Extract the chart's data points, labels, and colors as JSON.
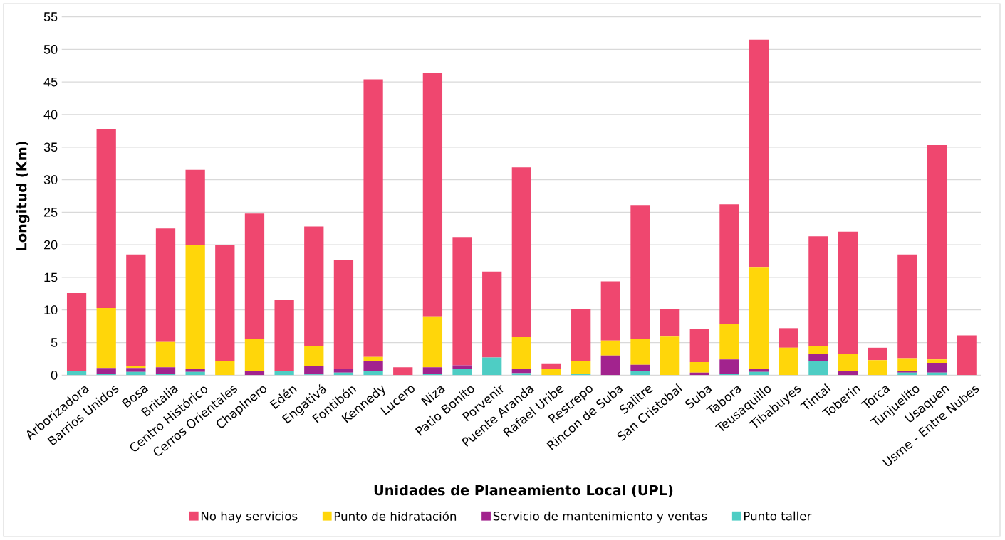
{
  "chart_data": {
    "type": "bar",
    "stacked": true,
    "xlabel": "Unidades de Planeamiento Local (UPL)",
    "ylabel": "Longitud (Km)",
    "categories": [
      "Arborizadora",
      "Barrios Unidos",
      "Bosa",
      "Britalia",
      "Centro Histórico",
      "Cerros Orientales",
      "Chapinero",
      "Edén",
      "Engativá",
      "Fontibón",
      "Kennedy",
      "Lucero",
      "Niza",
      "Patio Bonito",
      "Porvenir",
      "Puente Aranda",
      "Rafael Uribe",
      "Restrepo",
      "Rincon de Suba",
      "Salitre",
      "San Cristobal",
      "Suba",
      "Tabora",
      "Teusaquillo",
      "Tibabuyes",
      "Tintal",
      "Toberin",
      "Torca",
      "Tunjuelito",
      "Usaquen",
      "Usme - Entre Nubes"
    ],
    "series": [
      {
        "name": "Punto taller",
        "color": "#4ecdc4",
        "values": [
          0.7,
          0.2,
          0.5,
          0.2,
          0.5,
          null,
          null,
          0.6,
          0.1,
          0.4,
          0.7,
          null,
          0.2,
          1.0,
          2.7,
          0.3,
          null,
          0.2,
          null,
          0.7,
          null,
          null,
          0.2,
          0.5,
          null,
          2.2,
          null,
          null,
          0.4,
          0.4,
          null
        ]
      },
      {
        "name": "Servicio de mantenimiento y ventas",
        "color": "#a2238e",
        "values": [
          null,
          0.9,
          0.6,
          1.0,
          0.5,
          null,
          0.7,
          null,
          1.3,
          0.5,
          1.4,
          null,
          1.0,
          0.5,
          null,
          0.7,
          null,
          null,
          3.0,
          0.9,
          null,
          0.4,
          2.2,
          0.4,
          null,
          1.1,
          0.7,
          null,
          0.3,
          1.5,
          null
        ]
      },
      {
        "name": "Punto de hidratación",
        "color": "#ffd60a",
        "values": [
          null,
          9.2,
          0.3,
          4.0,
          19.0,
          2.2,
          4.9,
          null,
          3.1,
          null,
          0.7,
          null,
          7.8,
          null,
          null,
          4.9,
          1.0,
          1.9,
          2.3,
          3.9,
          6.0,
          1.6,
          5.4,
          15.7,
          4.2,
          1.2,
          2.5,
          2.3,
          1.9,
          0.5,
          null
        ]
      },
      {
        "name": "No hay servicios",
        "color": "#ef476f",
        "values": [
          11.9,
          27.5,
          17.1,
          17.3,
          11.5,
          17.7,
          19.2,
          11.0,
          18.3,
          16.8,
          42.6,
          1.2,
          37.4,
          19.7,
          13.2,
          26.0,
          0.8,
          8.0,
          9.1,
          20.6,
          4.2,
          5.1,
          18.4,
          34.9,
          3.0,
          16.8,
          18.8,
          1.9,
          15.9,
          32.9,
          6.1
        ]
      }
    ],
    "ylim": [
      0,
      55
    ],
    "yticks": [
      0,
      5,
      10,
      15,
      20,
      25,
      30,
      35,
      40,
      45,
      50,
      55
    ],
    "grid": "y",
    "legend": "bottom"
  }
}
